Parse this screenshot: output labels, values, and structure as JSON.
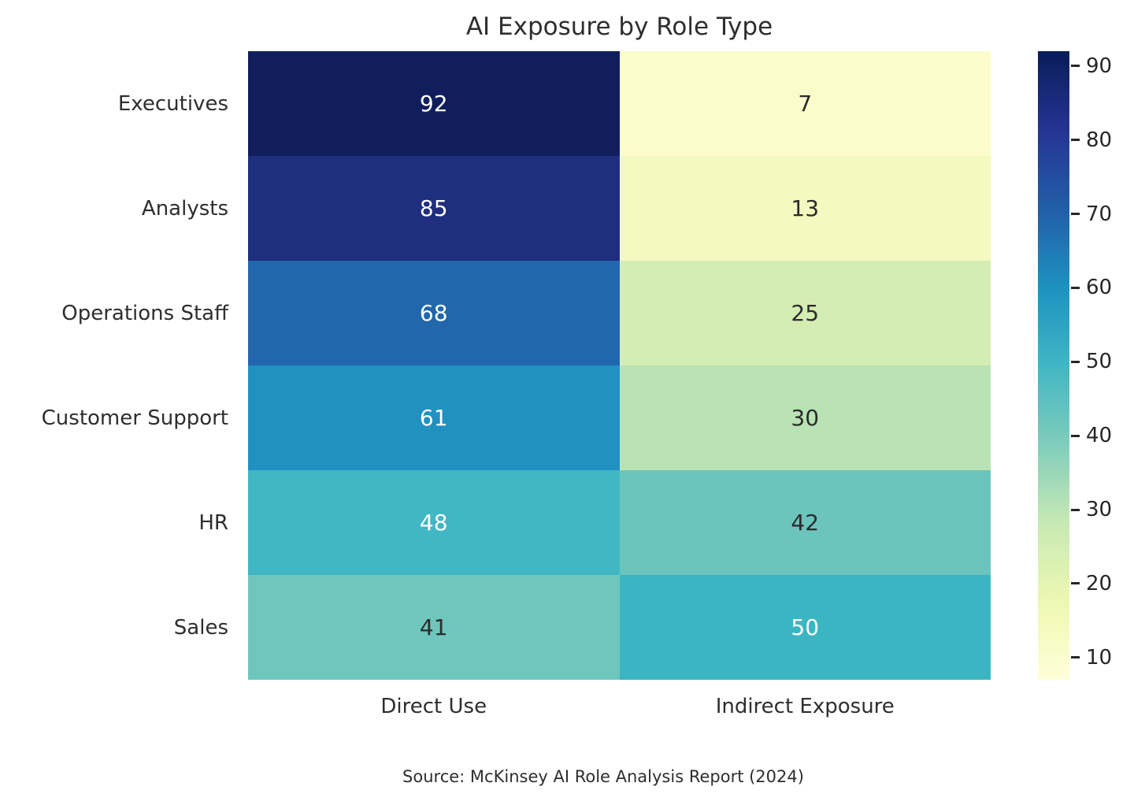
{
  "chart_data": {
    "type": "heatmap",
    "title": "AI Exposure by Role Type",
    "rows": [
      "Executives",
      "Analysts",
      "Operations Staff",
      "Customer Support",
      "HR",
      "Sales"
    ],
    "columns": [
      "Direct Use",
      "Indirect Exposure"
    ],
    "values": [
      [
        92,
        7
      ],
      [
        85,
        13
      ],
      [
        68,
        25
      ],
      [
        61,
        30
      ],
      [
        48,
        42
      ],
      [
        41,
        50
      ]
    ],
    "cell_colors": [
      [
        "#101f5c",
        "#fbfcca"
      ],
      [
        "#1f2e7e",
        "#f3f9c0"
      ],
      [
        "#2267ac",
        "#d4edb3"
      ],
      [
        "#2191c1",
        "#b9e3b5"
      ],
      [
        "#41b7c4",
        "#6cc5bc"
      ],
      [
        "#6fc6bd",
        "#3cb5c3"
      ]
    ],
    "cell_text_colors": [
      [
        "#ffffff",
        "#2b2b2b"
      ],
      [
        "#ffffff",
        "#2b2b2b"
      ],
      [
        "#ffffff",
        "#2b2b2b"
      ],
      [
        "#ffffff",
        "#2b2b2b"
      ],
      [
        "#ffffff",
        "#2b2b2b"
      ],
      [
        "#2b2b2b",
        "#ffffff"
      ]
    ],
    "colorbar": {
      "vmin": 7,
      "vmax": 92,
      "ticks": [
        90,
        80,
        70,
        60,
        50,
        40,
        30,
        20,
        10
      ],
      "gradient": [
        {
          "pos": 0,
          "color": "#081d58"
        },
        {
          "pos": 12.5,
          "color": "#253494"
        },
        {
          "pos": 25,
          "color": "#225ea8"
        },
        {
          "pos": 37.5,
          "color": "#1d91c0"
        },
        {
          "pos": 50,
          "color": "#41b6c4"
        },
        {
          "pos": 62.5,
          "color": "#7fcdbb"
        },
        {
          "pos": 75,
          "color": "#c7e9b4"
        },
        {
          "pos": 87.5,
          "color": "#edf8b1"
        },
        {
          "pos": 100,
          "color": "#ffffd9"
        }
      ]
    },
    "source": "Source: McKinsey AI Role Analysis Report (2024)"
  }
}
